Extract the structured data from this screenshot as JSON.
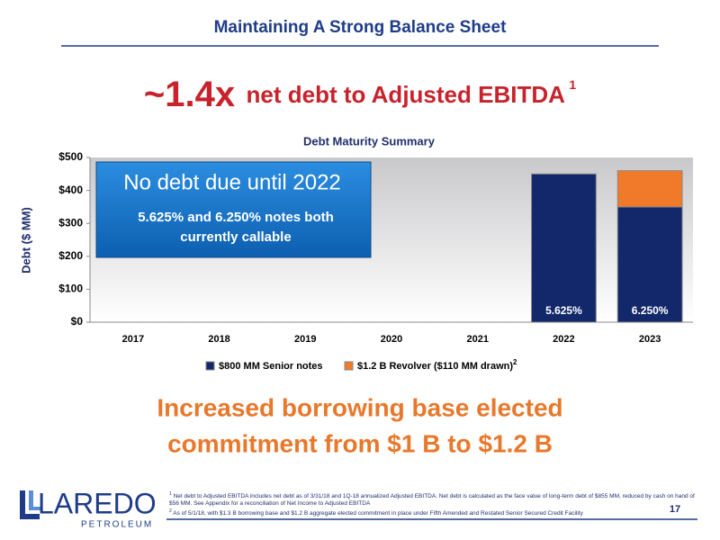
{
  "slide": {
    "title": "Maintaining A Strong Balance Sheet",
    "headline_ratio": "~1.4x",
    "headline_text": "net debt to Adjusted EBITDA",
    "headline_footnote_ref": "1",
    "callout": {
      "title": "No debt due until 2022",
      "lines": [
        "5.625% and 6.250% notes both",
        "currently callable"
      ]
    },
    "message": [
      "Increased borrowing base elected",
      "commitment from $1 B to $1.2 B"
    ],
    "logo": {
      "name": "LAREDO",
      "sub": "PETROLEUM"
    },
    "page_number": "17",
    "footnotes": [
      {
        "mark": "1",
        "text": "Net debt to Adjusted EBITDA includes net debt as of 3/31/18 and 1Q-18 annualized Adjusted EBITDA. Net debt is calculated as the face value of long-term debt of $855 MM, reduced by cash on hand of $56 MM. See Appendix for a reconciliation of Net Income to Adjusted EBITDA"
      },
      {
        "mark": "2",
        "text": "As of 5/1/18, with $1.3 B borrowing base and $1.2 B aggregate elected commitment in place under Fifth Amended and Restated Senior Secured Credit Facility"
      }
    ]
  },
  "chart_data": {
    "type": "stacked_bar",
    "title": "Debt Maturity Summary",
    "ylabel": "Debt ($ MM)",
    "categories": [
      "2017",
      "2018",
      "2019",
      "2020",
      "2021",
      "2022",
      "2023"
    ],
    "series": [
      {
        "name": "$800 MM Senior notes",
        "color": "#13286b",
        "values": [
          0,
          0,
          0,
          0,
          0,
          450,
          350
        ],
        "value_labels": [
          null,
          null,
          null,
          null,
          null,
          "5.625%",
          "6.250%"
        ]
      },
      {
        "name": "$1.2 B Revolver ($110 MM drawn)",
        "footnote_ref": "2",
        "color": "#f07a2a",
        "values": [
          0,
          0,
          0,
          0,
          0,
          0,
          110
        ]
      }
    ],
    "ylim": [
      0,
      500
    ],
    "yticks": [
      {
        "value": 0,
        "label": "$0"
      },
      {
        "value": 100,
        "label": "$100"
      },
      {
        "value": 200,
        "label": "$200"
      },
      {
        "value": 300,
        "label": "$300"
      },
      {
        "value": 400,
        "label": "$400"
      },
      {
        "value": 500,
        "label": "$500"
      }
    ],
    "legend": "bottom"
  }
}
